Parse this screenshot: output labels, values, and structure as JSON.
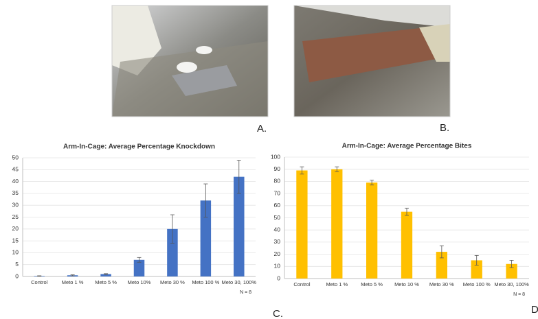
{
  "panels": {
    "a": "A.",
    "b": "B.",
    "c": "C.",
    "d": "D"
  },
  "chart_data": [
    {
      "type": "bar",
      "title": "Arm-In-Cage: Average Percentage Knockdown",
      "categories": [
        "Control",
        "Meto 1 %",
        "Meto 5 %",
        "Meto 10%",
        "Meto 30 %",
        "Meto 100 %",
        "Meto  30, 100%"
      ],
      "values": [
        0.2,
        0.5,
        1,
        7,
        20,
        32,
        42
      ],
      "errors": [
        0.1,
        0.2,
        0.2,
        1,
        6,
        7,
        7
      ],
      "color": "#4472c4",
      "ylim": [
        0,
        50
      ],
      "yticks": [
        0,
        5,
        10,
        15,
        20,
        25,
        30,
        35,
        40,
        45,
        50
      ],
      "grid": true,
      "note": "N = 8"
    },
    {
      "type": "bar",
      "title": "Arm-In-Cage: Average Percentage Bites",
      "categories": [
        "Control",
        "Meto 1 %",
        "Meto 5 %",
        "Meto 10 %",
        "Meto 30 %",
        "Meto 100 %",
        "Meto 30, 100%"
      ],
      "values": [
        89,
        90,
        79,
        55,
        22,
        15,
        12
      ],
      "errors": [
        3,
        2,
        2,
        3,
        5,
        4,
        3
      ],
      "color": "#ffc000",
      "ylim": [
        0,
        100
      ],
      "yticks": [
        0,
        10,
        20,
        30,
        40,
        50,
        60,
        70,
        80,
        90,
        100
      ],
      "grid": true,
      "note": "N = 8"
    }
  ]
}
